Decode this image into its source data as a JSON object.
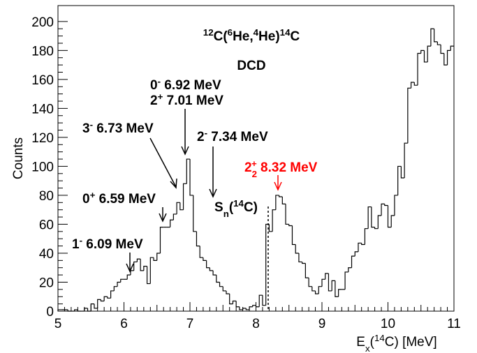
{
  "chart_data": {
    "type": "histogram",
    "title_lines": [
      [
        {
          "text": "12",
          "style": "sup"
        },
        {
          "text": "C("
        },
        {
          "text": "6",
          "style": "sup"
        },
        {
          "text": "He,"
        },
        {
          "text": "4",
          "style": "sup"
        },
        {
          "text": "He)"
        },
        {
          "text": "14",
          "style": "sup"
        },
        {
          "text": "C"
        }
      ],
      [
        {
          "text": "DCD"
        }
      ]
    ],
    "x_label": [
      {
        "text": "E"
      },
      {
        "text": "x",
        "style": "sub"
      },
      {
        "text": "("
      },
      {
        "text": "14",
        "style": "sup"
      },
      {
        "text": "C) [MeV]"
      }
    ],
    "y_label": "Counts",
    "annotations": [
      {
        "color": "#000000",
        "text": [
          {
            "text": "0"
          },
          {
            "text": "-",
            "style": "sup"
          },
          {
            "text": " 6.92 MeV"
          }
        ]
      },
      {
        "color": "#000000",
        "text": [
          {
            "text": "2"
          },
          {
            "text": "+",
            "style": "sup"
          },
          {
            "text": " 7.01 MeV"
          }
        ]
      },
      {
        "color": "#000000",
        "text": [
          {
            "text": "3"
          },
          {
            "text": "-",
            "style": "sup"
          },
          {
            "text": " 6.73 MeV"
          }
        ]
      },
      {
        "color": "#000000",
        "text": [
          {
            "text": "2"
          },
          {
            "text": "-",
            "style": "sup"
          },
          {
            "text": " 7.34 MeV"
          }
        ]
      },
      {
        "color": "#ff0000",
        "text": [
          {
            "text": "2"
          },
          {
            "text": "2",
            "style": "sub"
          },
          {
            "text": "+",
            "style": "sup"
          },
          {
            "text": " 8.32 MeV"
          }
        ]
      },
      {
        "color": "#000000",
        "text": [
          {
            "text": "0"
          },
          {
            "text": "+",
            "style": "sup"
          },
          {
            "text": " 6.59 MeV"
          }
        ]
      },
      {
        "color": "#000000",
        "text": [
          {
            "text": "S"
          },
          {
            "text": "n",
            "style": "sub"
          },
          {
            "text": "("
          },
          {
            "text": "14",
            "style": "sup"
          },
          {
            "text": "C)"
          }
        ]
      },
      {
        "color": "#000000",
        "text": [
          {
            "text": "1"
          },
          {
            "text": "-",
            "style": "sup"
          },
          {
            "text": " 6.09 MeV"
          }
        ]
      }
    ],
    "color": "#000000",
    "bins": [
      5,
      5.05,
      5.1,
      5.15,
      5.2,
      5.25,
      5.3,
      5.35,
      5.4,
      5.45,
      5.5,
      5.55,
      5.6,
      5.65,
      5.7,
      5.75,
      5.8,
      5.85,
      5.9,
      5.95,
      6,
      6.05,
      6.1,
      6.15,
      6.2,
      6.25,
      6.3,
      6.35,
      6.4,
      6.45,
      6.5,
      6.55,
      6.6,
      6.65,
      6.7,
      6.75,
      6.8,
      6.85,
      6.9,
      6.95,
      7,
      7.05,
      7.1,
      7.15,
      7.2,
      7.25,
      7.3,
      7.35,
      7.4,
      7.45,
      7.5,
      7.55,
      7.6,
      7.65,
      7.7,
      7.75,
      7.8,
      7.85,
      7.9,
      7.95,
      8,
      8.05,
      8.1,
      8.15,
      8.2,
      8.25,
      8.3,
      8.35,
      8.4,
      8.45,
      8.5,
      8.55,
      8.6,
      8.65,
      8.7,
      8.75,
      8.8,
      8.85,
      8.9,
      8.95,
      9,
      9.05,
      9.1,
      9.15,
      9.2,
      9.25,
      9.3,
      9.35,
      9.4,
      9.45,
      9.5,
      9.55,
      9.6,
      9.65,
      9.7,
      9.75,
      9.8,
      9.85,
      9.9,
      9.95,
      10,
      10.05,
      10.1,
      10.15,
      10.2,
      10.25,
      10.3,
      10.35,
      10.4,
      10.45,
      10.5,
      10.55,
      10.6,
      10.65,
      10.7,
      10.75,
      10.8,
      10.85,
      10.9,
      10.95,
      11
    ],
    "values": [
      1,
      1,
      1,
      0,
      0,
      1,
      0,
      0,
      2,
      0,
      5,
      2,
      8,
      7,
      10,
      9,
      14,
      17,
      20,
      22,
      22,
      25,
      28,
      34,
      36,
      28,
      31,
      19,
      37,
      35,
      40,
      58,
      58,
      58,
      63,
      67,
      75,
      70,
      88,
      105,
      80,
      55,
      45,
      37,
      35,
      30,
      28,
      25,
      20,
      17,
      14,
      12,
      5,
      7,
      3,
      1,
      2,
      1,
      3,
      4,
      3,
      11,
      4,
      60,
      55,
      70,
      80,
      79,
      74,
      60,
      59,
      46,
      40,
      34,
      33,
      23,
      17,
      14,
      12,
      17,
      22,
      26,
      14,
      21,
      10,
      15,
      15,
      27,
      30,
      38,
      41,
      47,
      46,
      57,
      72,
      58,
      57,
      66,
      74,
      73,
      58,
      66,
      80,
      100,
      92,
      116,
      154,
      158,
      156,
      178,
      180,
      172,
      183,
      195,
      186,
      184,
      178,
      170,
      180,
      183
    ],
    "xlim": [
      5,
      11
    ],
    "xticks": [
      5,
      6,
      7,
      8,
      9,
      10,
      11
    ],
    "ylim": [
      0,
      211
    ],
    "yticks": [
      0,
      20,
      40,
      60,
      80,
      100,
      120,
      140,
      160,
      180,
      200
    ],
    "grid": false
  }
}
